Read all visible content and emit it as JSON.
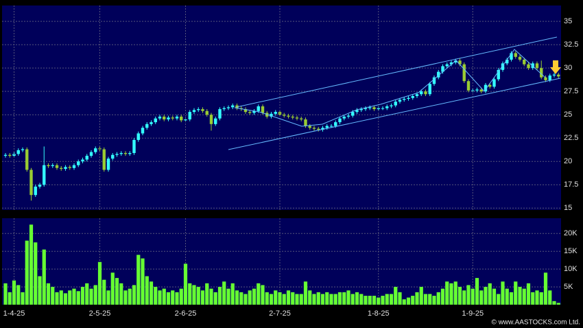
{
  "chart_data": [
    {
      "type": "candlestick",
      "up_color": "#33ffff",
      "down_color": "#99cc33",
      "grid": true,
      "ylim": [
        14.8,
        36.7
      ],
      "yticks": [
        15,
        17.5,
        20,
        22.5,
        25,
        27.5,
        30,
        32.5,
        35
      ],
      "open": [
        20.6,
        20.7,
        20.6,
        20.8,
        21.2,
        21.3,
        19.1,
        16.4,
        17.3,
        17.5,
        19.6,
        19.5,
        19.6,
        19.3,
        19.2,
        19.4,
        19.3,
        19.6,
        20,
        20.2,
        20.6,
        21,
        21.4,
        21.3,
        19.1,
        20.3,
        20.7,
        20.8,
        20.9,
        20.8,
        20.9,
        22.3,
        23,
        23.6,
        24,
        24.2,
        24.6,
        24.8,
        24.5,
        24.7,
        24.6,
        24.8,
        24.4,
        24.5,
        25.3,
        25.5,
        25.6,
        25.4,
        25,
        24,
        24.6,
        25.6,
        25.7,
        25.8,
        26,
        25.7,
        25.6,
        25.3,
        25.2,
        25.4,
        25.9,
        25.2,
        24.8,
        25.1,
        25.3,
        25,
        24.9,
        24.8,
        24.7,
        24.6,
        24.5,
        23.8,
        23.6,
        23.5,
        23.4,
        23.6,
        23.8,
        23.8,
        24.2,
        24.6,
        24.8,
        24.9,
        25.3,
        25.5,
        25.6,
        25.7,
        25.8,
        25.6,
        25.7,
        25.7,
        25.9,
        26,
        26.4,
        26.6,
        26.7,
        26.8,
        27,
        27.2,
        27.5,
        27.2,
        28.3,
        29,
        29.6,
        30.2,
        30.4,
        30.6,
        30.8,
        30.4,
        28.6,
        27.6,
        27.6,
        27.7,
        27.5,
        28.2,
        28,
        28.8,
        29.8,
        30.5,
        30.9,
        31.6,
        31.2,
        30.9,
        30.4,
        30,
        30.5,
        30,
        29,
        28.7,
        29.2,
        29.3
      ],
      "high": [
        20.9,
        20.9,
        21,
        21.4,
        21.5,
        21.5,
        19.3,
        17.5,
        17.7,
        21.6,
        19.8,
        19.8,
        19.8,
        19.5,
        19.6,
        19.6,
        19.8,
        20.2,
        20.4,
        20.8,
        21.2,
        21.6,
        21.6,
        21.5,
        20.5,
        20.9,
        21,
        21.1,
        21.1,
        21.1,
        22.5,
        23.2,
        23.8,
        24.2,
        24.4,
        24.8,
        25,
        25,
        24.9,
        24.9,
        25,
        25,
        24.7,
        25.5,
        25.7,
        25.8,
        25.8,
        25.6,
        25.2,
        24.8,
        25.8,
        25.9,
        26,
        26.2,
        26.2,
        25.9,
        25.8,
        25.5,
        25.6,
        26.1,
        26.1,
        25.4,
        25.3,
        25.5,
        25.5,
        25.2,
        25.1,
        25,
        24.9,
        24.8,
        24.7,
        24,
        23.8,
        23.7,
        23.8,
        24,
        24,
        24.4,
        24.8,
        25,
        25.1,
        25.5,
        25.7,
        25.8,
        25.9,
        26,
        26,
        25.9,
        25.9,
        26.1,
        26.2,
        26.6,
        26.8,
        26.9,
        27,
        27.2,
        27.4,
        27.7,
        27.7,
        28.5,
        29.2,
        29.8,
        30.4,
        30.6,
        30.8,
        31,
        31,
        30.6,
        28.8,
        27.8,
        27.9,
        27.9,
        28.4,
        28.4,
        29,
        30,
        30.7,
        31.1,
        31.8,
        31.8,
        31.4,
        31.1,
        30.6,
        30.7,
        30.7,
        30.8,
        29.2,
        29.4,
        29.5,
        29.5
      ],
      "low": [
        20.4,
        20.4,
        20.4,
        20.6,
        21,
        18.9,
        15.8,
        16.2,
        17.1,
        17.3,
        19.3,
        19.3,
        19.1,
        19,
        19,
        19.1,
        19.1,
        19.4,
        19.8,
        20,
        20.4,
        20.8,
        21.1,
        18.9,
        18.9,
        20.1,
        20.5,
        20.6,
        20.6,
        20.6,
        20.7,
        22.1,
        22.8,
        23.4,
        23.8,
        24,
        24.4,
        24.3,
        24.3,
        24.4,
        24.4,
        24.2,
        24.2,
        24.3,
        25.1,
        25.3,
        25.2,
        24.8,
        23.3,
        23.8,
        24.4,
        25.4,
        25.5,
        25.6,
        25.5,
        25.4,
        25.1,
        25,
        25,
        25.2,
        25,
        24.6,
        24.6,
        24.9,
        24.8,
        24.7,
        24.6,
        24.5,
        24.4,
        24.3,
        23.6,
        23.4,
        23.3,
        23.2,
        23.2,
        23.4,
        23.6,
        23.6,
        24,
        24.4,
        24.6,
        24.7,
        25.1,
        25.3,
        25.4,
        25.5,
        25.4,
        25.4,
        25.5,
        25.5,
        25.7,
        25.8,
        26.2,
        26.4,
        26.5,
        26.6,
        26.8,
        27,
        27,
        27,
        28.1,
        28.8,
        29.4,
        30,
        30.2,
        30.4,
        30.2,
        28.4,
        27.4,
        27.4,
        27.4,
        27.3,
        27.3,
        27.8,
        27.8,
        28.6,
        29.6,
        30.3,
        30.7,
        31,
        30.7,
        30.2,
        29.8,
        29.8,
        29.8,
        28.8,
        28.5,
        28.5,
        29,
        28.9
      ],
      "close": [
        20.7,
        20.6,
        20.8,
        21.2,
        21.3,
        19.1,
        16.4,
        17.3,
        17.5,
        19.6,
        19.5,
        19.6,
        19.3,
        19.2,
        19.4,
        19.3,
        19.6,
        20,
        20.2,
        20.6,
        21,
        21.4,
        21.3,
        19.1,
        20.3,
        20.7,
        20.8,
        20.9,
        20.8,
        20.9,
        22.3,
        23,
        23.6,
        24,
        24.2,
        24.6,
        24.8,
        24.5,
        24.7,
        24.6,
        24.8,
        24.4,
        24.5,
        25.3,
        25.5,
        25.6,
        25.4,
        25,
        24,
        24.6,
        25.6,
        25.7,
        25.8,
        26,
        25.7,
        25.6,
        25.3,
        25.2,
        25.4,
        25.9,
        25.2,
        24.8,
        25.1,
        25.3,
        25,
        24.9,
        24.8,
        24.7,
        24.6,
        24.5,
        23.8,
        23.6,
        23.5,
        23.4,
        23.6,
        23.8,
        23.8,
        24.2,
        24.6,
        24.8,
        24.9,
        25.3,
        25.5,
        25.6,
        25.7,
        25.8,
        25.6,
        25.7,
        25.7,
        25.9,
        26,
        26.4,
        26.6,
        26.7,
        26.8,
        27,
        27.2,
        27.5,
        27.2,
        28.3,
        29,
        29.6,
        30.2,
        30.4,
        30.6,
        30.8,
        30.4,
        28.6,
        27.6,
        27.6,
        27.7,
        27.5,
        28.2,
        28,
        28.8,
        29.8,
        30.5,
        30.9,
        31.6,
        31.2,
        30.9,
        30.4,
        30,
        30.5,
        30,
        29,
        28.7,
        29.2,
        29.3,
        29.1
      ]
    },
    {
      "type": "bar",
      "color": "#66ff33",
      "grid": true,
      "ylim": [
        0,
        24300
      ],
      "yticks": [
        {
          "value": 5000,
          "label": "5K"
        },
        {
          "value": 10000,
          "label": "10K"
        },
        {
          "value": 15000,
          "label": "15K"
        },
        {
          "value": 20000,
          "label": "20K"
        }
      ],
      "categories": [
        null,
        null,
        "1-4-25",
        null,
        null,
        null,
        null,
        null,
        null,
        null,
        null,
        null,
        null,
        null,
        null,
        null,
        null,
        null,
        null,
        null,
        null,
        null,
        "2-5-25",
        null,
        null,
        null,
        null,
        null,
        null,
        null,
        null,
        null,
        null,
        null,
        null,
        null,
        null,
        null,
        null,
        null,
        null,
        null,
        "2-6-25",
        null,
        null,
        null,
        null,
        null,
        null,
        null,
        null,
        null,
        null,
        null,
        null,
        null,
        null,
        null,
        null,
        null,
        null,
        null,
        null,
        null,
        "2-7-25",
        null,
        null,
        null,
        null,
        null,
        null,
        null,
        null,
        null,
        null,
        null,
        null,
        null,
        null,
        null,
        null,
        null,
        null,
        null,
        null,
        null,
        null,
        "1-8-25",
        null,
        null,
        null,
        null,
        null,
        null,
        null,
        null,
        null,
        null,
        null,
        null,
        null,
        null,
        null,
        null,
        null,
        null,
        null,
        null,
        null,
        "1-9-25",
        null,
        null,
        null,
        null,
        null,
        null,
        null,
        null,
        null,
        null,
        null,
        null,
        null,
        null,
        null,
        null,
        null,
        null,
        null,
        null
      ],
      "values": [
        6000,
        3500,
        6800,
        5500,
        3500,
        18000,
        22500,
        17500,
        8000,
        15500,
        6000,
        5000,
        3500,
        4000,
        3200,
        4000,
        4500,
        3800,
        5000,
        6000,
        4500,
        5500,
        12000,
        7000,
        4000,
        9000,
        7500,
        6000,
        4000,
        4500,
        5500,
        14000,
        13000,
        8000,
        6500,
        5000,
        4000,
        4500,
        3500,
        4000,
        3500,
        4500,
        11500,
        6000,
        5500,
        5000,
        4000,
        6000,
        4500,
        3500,
        5000,
        6500,
        4500,
        6000,
        4000,
        3500,
        3000,
        4000,
        4500,
        6000,
        5500,
        3500,
        3000,
        4000,
        3500,
        3000,
        4000,
        3500,
        3000,
        3000,
        6500,
        4000,
        3000,
        3500,
        3000,
        3500,
        3000,
        3000,
        3500,
        3500,
        4000,
        3000,
        3500,
        3000,
        2500,
        2500,
        2500,
        2000,
        2500,
        3000,
        3000,
        5000,
        3500,
        1500,
        2000,
        2500,
        3500,
        5000,
        3000,
        3000,
        2500,
        3500,
        4500,
        6500,
        6000,
        6500,
        5000,
        4000,
        5500,
        4500,
        7500,
        4000,
        5000,
        6000,
        4500,
        3000,
        6500,
        4500,
        3500,
        6500,
        5000,
        4500,
        6000,
        3500,
        4000,
        3500,
        9000,
        4000,
        1000,
        500
      ]
    }
  ],
  "copyright": "© www.AASTOCKS.com Ltd."
}
